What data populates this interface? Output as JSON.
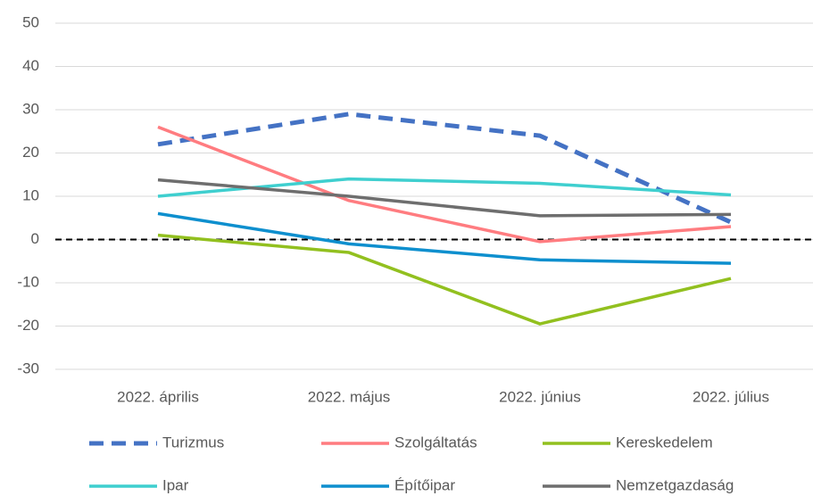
{
  "chart_data": {
    "type": "line",
    "categories": [
      "2022. április",
      "2022. május",
      "2022. június",
      "2022. július"
    ],
    "series": [
      {
        "name": "Turizmus",
        "color": "#4472c4",
        "dashed": true,
        "values": [
          22,
          29,
          24,
          4
        ]
      },
      {
        "name": "Szolgáltatás",
        "color": "#ff7c80",
        "values": [
          26,
          9,
          -0.5,
          3
        ]
      },
      {
        "name": "Kereskedelem",
        "color": "#92c01f",
        "values": [
          1,
          -3,
          -19.5,
          -9
        ]
      },
      {
        "name": "Ipar",
        "color": "#3fcfcf",
        "values": [
          10,
          14,
          13,
          10.3
        ]
      },
      {
        "name": "Építőipar",
        "color": "#0e8fce",
        "values": [
          6,
          -1,
          -4.7,
          -5.5
        ]
      },
      {
        "name": "Nemzetgazdaság",
        "color": "#6e6e6e",
        "values": [
          13.8,
          10,
          5.5,
          5.8
        ]
      }
    ],
    "ylim": [
      -30,
      50
    ],
    "yticks": [
      -30,
      -20,
      -10,
      0,
      10,
      20,
      30,
      40,
      50
    ],
    "grid": true,
    "legend": "bottom"
  }
}
